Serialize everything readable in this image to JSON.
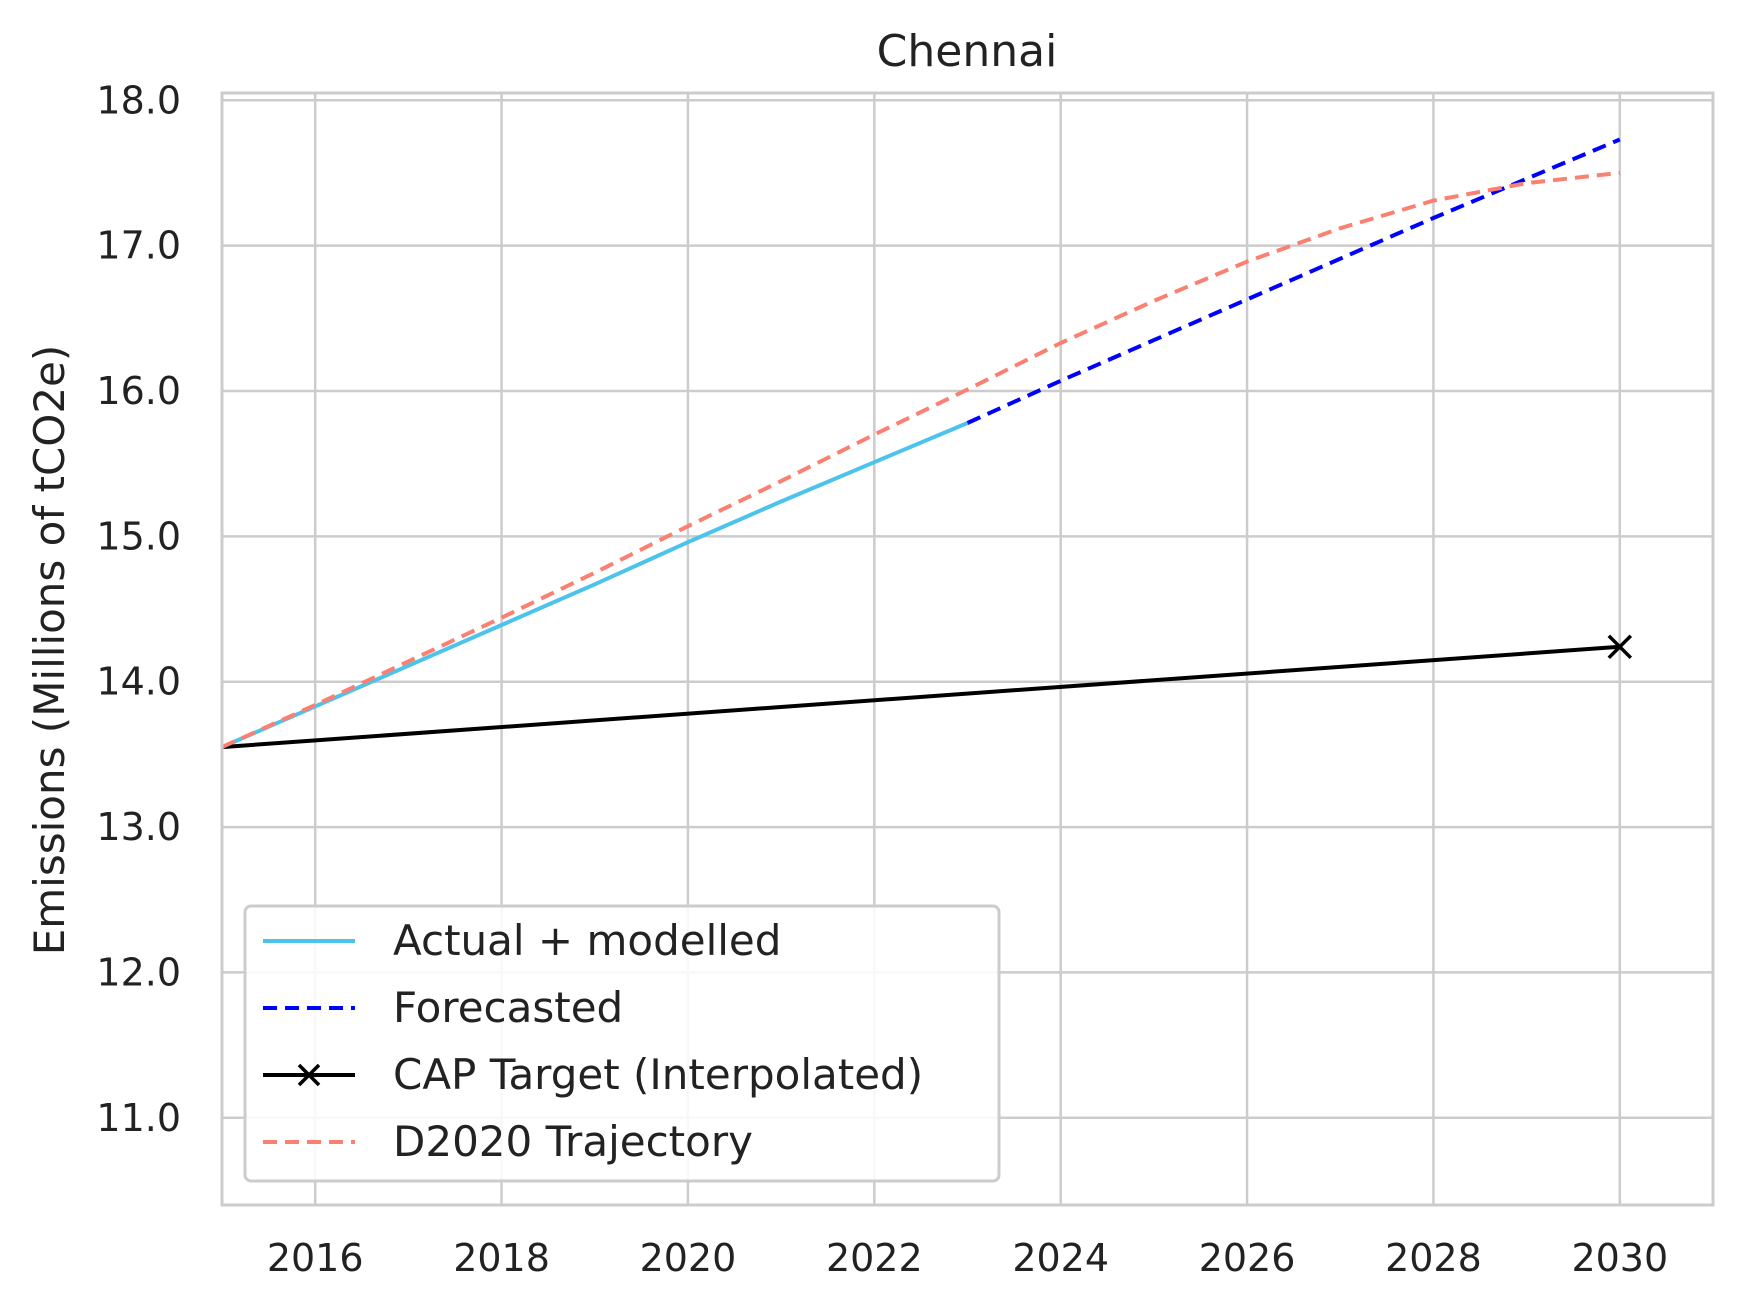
{
  "chart_data": {
    "type": "line",
    "title": "Chennai",
    "xlabel": "",
    "ylabel": "Emissions (Millions of tCO2e)",
    "xlim": [
      2015,
      2031
    ],
    "ylim": [
      10.4,
      18.05
    ],
    "grid": true,
    "legend_position": "lower-left",
    "x_ticks": [
      "2016",
      "2018",
      "2020",
      "2022",
      "2024",
      "2026",
      "2028",
      "2030"
    ],
    "y_ticks": [
      "11.0",
      "12.0",
      "13.0",
      "14.0",
      "15.0",
      "16.0",
      "17.0",
      "18.0"
    ],
    "series": [
      {
        "name": "Actual + modelled",
        "color": "#4cc3ea",
        "style": "solid",
        "x": [
          2015,
          2016,
          2017,
          2018,
          2019,
          2020,
          2021,
          2022,
          2023
        ],
        "y": [
          13.55,
          13.83,
          14.11,
          14.39,
          14.67,
          14.96,
          15.24,
          15.51,
          15.78
        ]
      },
      {
        "name": "Forecasted",
        "color": "#0000ff",
        "style": "dashed",
        "x": [
          2023,
          2024,
          2025,
          2026,
          2027,
          2028,
          2029,
          2030
        ],
        "y": [
          15.78,
          16.07,
          16.35,
          16.63,
          16.91,
          17.19,
          17.46,
          17.73
        ]
      },
      {
        "name": "CAP Target (Interpolated)",
        "color": "#000000",
        "style": "solid",
        "marker": "x",
        "x": [
          2015,
          2030
        ],
        "y": [
          13.55,
          14.24
        ]
      },
      {
        "name": "D2020 Trajectory",
        "color": "#fa8072",
        "style": "dashed",
        "x": [
          2015,
          2016,
          2017,
          2018,
          2019,
          2020,
          2021,
          2022,
          2023,
          2024,
          2025,
          2026,
          2027,
          2028,
          2029,
          2030
        ],
        "y": [
          13.55,
          13.84,
          14.14,
          14.44,
          14.75,
          15.07,
          15.38,
          15.7,
          16.01,
          16.33,
          16.62,
          16.89,
          17.12,
          17.31,
          17.43,
          17.5
        ]
      }
    ]
  }
}
